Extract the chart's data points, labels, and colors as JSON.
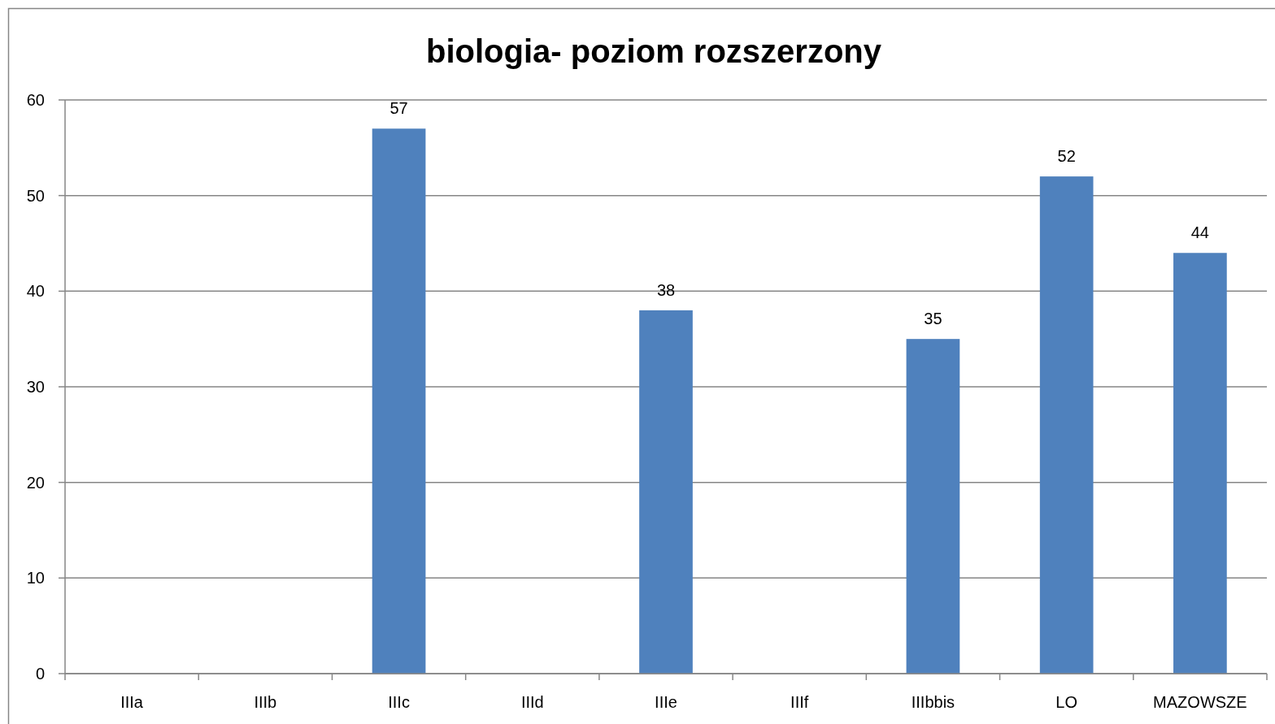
{
  "chart_data": {
    "type": "bar",
    "title": "biologia- poziom rozszerzony",
    "categories": [
      "IIIa",
      "IIIb",
      "IIIc",
      "IIId",
      "IIIe",
      "IIIf",
      "IIIbbis",
      "LO",
      "MAZOWSZE"
    ],
    "values": [
      null,
      null,
      57,
      null,
      38,
      null,
      35,
      52,
      44
    ],
    "color": "#4f81bd",
    "ylim": [
      0,
      60
    ],
    "yticks": [
      0,
      10,
      20,
      30,
      40,
      50,
      60
    ],
    "grid": "y",
    "data_labels": true
  }
}
